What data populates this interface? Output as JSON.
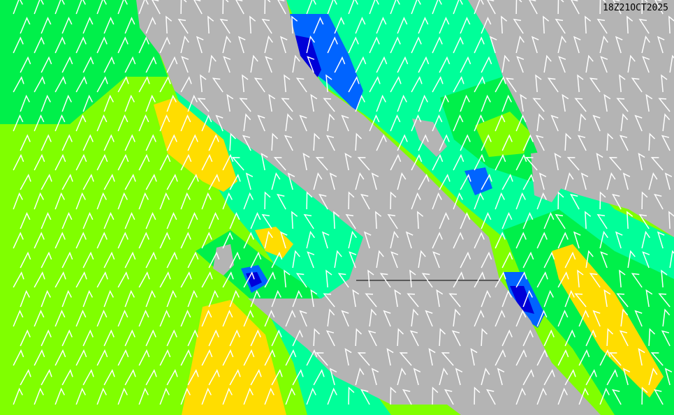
{
  "map": {
    "timestamp": "18Z21OCT2025",
    "colors": {
      "land": "#b4b4b4",
      "green": "#00f04a",
      "lime": "#80ff00",
      "yellow": "#ffdd00",
      "aqua": "#00ff99",
      "teal": "#00e8b0",
      "blue": "#0064ff",
      "dark_blue": "#0000d8",
      "barbs": "#ffffff",
      "border": "#000000"
    },
    "layers": [
      "wind-speed-shading",
      "wind-barbs",
      "terrain-relief",
      "border"
    ]
  }
}
